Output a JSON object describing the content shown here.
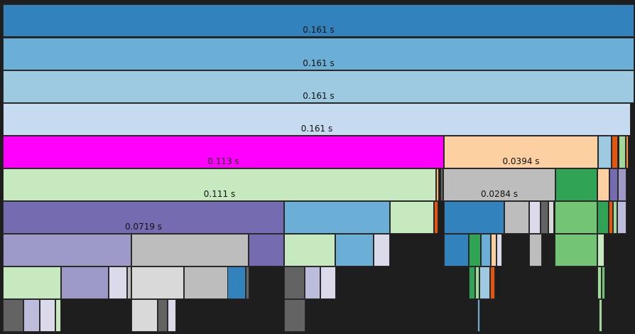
{
  "flame_chart": {
    "rows": [
      [
        {
          "c": "#3182bd",
          "label": "0.161 s"
        }
      ],
      [
        {
          "c": "#6baed6",
          "label": "0.161 s"
        }
      ],
      [
        {
          "c": "#9ecae1",
          "label": "0.161 s"
        }
      ],
      [
        {
          "c": "#c6dbef",
          "label": "0.161 s"
        }
      ],
      [
        {
          "c": "#ff00ff",
          "label": "0.113 s"
        },
        {
          "c": "#fdd0a2",
          "label": "0.0394 s"
        },
        {
          "c": "#9ecae1"
        },
        {
          "c": "#e6550d"
        },
        {
          "c": "#a1d99b"
        },
        {
          "c": "#fd8d3c"
        }
      ],
      [
        {
          "c": "#c7e9c0",
          "label": "0.111 s"
        },
        {
          "c": "#fdae6b"
        },
        {
          "c": "#636363"
        },
        {
          "c": "#bdbdbd",
          "label": "0.0284 s"
        },
        {
          "c": "#31a354"
        },
        {
          "c": "#fdd0a2"
        },
        {
          "c": "#756bb1"
        },
        {
          "c": "#9e9ac8"
        }
      ],
      [
        {
          "c": "#756bb1",
          "label": "0.0719 s"
        },
        {
          "c": "#6baed6"
        },
        {
          "c": "#c7e9c0"
        },
        {
          "c": "#e6550d"
        },
        {
          "c": "#3182bd"
        },
        {
          "c": "#bdbdbd"
        },
        {
          "c": "#dadaeb"
        },
        {
          "c": "#636363"
        },
        {
          "c": "#d9d9d9"
        },
        {
          "c": "#74c476"
        },
        {
          "c": "#31a354"
        },
        {
          "c": "#e6550d"
        },
        {
          "c": "#a1d99b"
        },
        {
          "c": "#bcbddc"
        }
      ],
      [
        {
          "c": "#9e9ac8"
        },
        {
          "c": "#bdbdbd"
        },
        {
          "c": "#756bb1"
        },
        {
          "c": "#c7e9c0"
        },
        {
          "c": "#6baed6"
        },
        {
          "c": "#dadaeb"
        },
        {
          "c": "#3182bd"
        },
        {
          "c": "#31a354"
        },
        {
          "c": "#6baed6"
        },
        {
          "c": "#fdd0a2"
        },
        {
          "c": "#dadaeb"
        },
        {
          "c": "#bdbdbd"
        },
        {
          "c": "#74c476"
        },
        {
          "c": "#c7e9c0"
        }
      ],
      [
        {
          "c": "#c7e9c0"
        },
        {
          "c": "#9e9ac8"
        },
        {
          "c": "#dadaeb"
        },
        {
          "c": "#bdbdbd"
        },
        {
          "c": "#d9d9d9"
        },
        {
          "c": "#bdbdbd"
        },
        {
          "c": "#3182bd"
        },
        {
          "c": "#636363"
        },
        {
          "c": "#636363"
        },
        {
          "c": "#bcbddc"
        },
        {
          "c": "#dadaeb"
        },
        {
          "c": "#31a354"
        },
        {
          "c": "#a1d99b"
        },
        {
          "c": "#9ecae1"
        },
        {
          "c": "#e6550d"
        },
        {
          "c": "#a1d99b"
        },
        {
          "c": "#74c476"
        }
      ],
      [
        {
          "c": "#636363"
        },
        {
          "c": "#bcbddc"
        },
        {
          "c": "#dadaeb"
        },
        {
          "c": "#c7e9c0"
        },
        {
          "c": "#d9d9d9"
        },
        {
          "c": "#636363"
        },
        {
          "c": "#dadaeb"
        },
        {
          "c": "#636363"
        },
        {
          "c": "#6baed6"
        },
        {
          "c": "#a1d99b"
        }
      ]
    ]
  }
}
